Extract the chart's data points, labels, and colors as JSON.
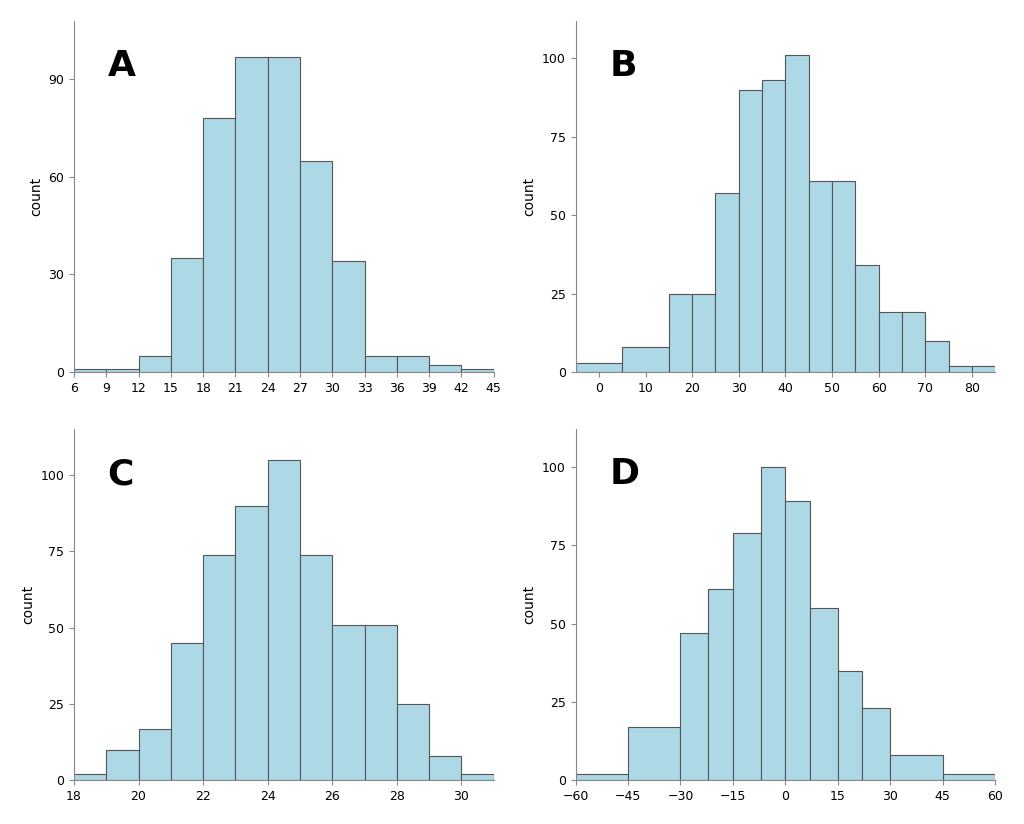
{
  "A": {
    "label": "A",
    "bin_edges": [
      6,
      9,
      12,
      15,
      18,
      21,
      24,
      27,
      30,
      33,
      36,
      39,
      42,
      45
    ],
    "counts": [
      1,
      1,
      5,
      35,
      78,
      97,
      97,
      65,
      34,
      5,
      5,
      2,
      1
    ],
    "xticks": [
      6,
      9,
      12,
      15,
      18,
      21,
      24,
      27,
      30,
      33,
      36,
      39,
      42,
      45
    ],
    "yticks": [
      0,
      30,
      60,
      90
    ],
    "ylim": [
      0,
      108
    ],
    "xlim": [
      6,
      45
    ]
  },
  "B": {
    "label": "B",
    "bin_edges": [
      -5,
      5,
      15,
      20,
      25,
      30,
      35,
      40,
      45,
      50,
      55,
      60,
      65,
      70,
      75,
      80,
      85
    ],
    "counts": [
      3,
      8,
      25,
      25,
      57,
      90,
      93,
      101,
      61,
      61,
      34,
      19,
      19,
      10,
      2,
      2
    ],
    "xticks": [
      0,
      10,
      20,
      30,
      40,
      50,
      60,
      70,
      80
    ],
    "yticks": [
      0,
      25,
      50,
      75,
      100
    ],
    "ylim": [
      0,
      112
    ],
    "xlim": [
      -5,
      85
    ]
  },
  "C": {
    "label": "C",
    "bin_edges": [
      18,
      19,
      20,
      21,
      22,
      23,
      24,
      25,
      26,
      27,
      28,
      29,
      30,
      31
    ],
    "counts": [
      2,
      10,
      17,
      45,
      74,
      90,
      105,
      74,
      51,
      51,
      25,
      8,
      2
    ],
    "xticks": [
      18,
      20,
      22,
      24,
      26,
      28,
      30
    ],
    "yticks": [
      0,
      25,
      50,
      75,
      100
    ],
    "ylim": [
      0,
      115
    ],
    "xlim": [
      18,
      31
    ]
  },
  "D": {
    "label": "D",
    "bin_edges": [
      -60,
      -45,
      -30,
      -22,
      -15,
      -7,
      0,
      7,
      15,
      22,
      30,
      45,
      60
    ],
    "counts": [
      2,
      17,
      47,
      61,
      79,
      100,
      89,
      55,
      35,
      23,
      8,
      2
    ],
    "xticks": [
      -60,
      -45,
      -30,
      -15,
      0,
      15,
      30,
      45,
      60
    ],
    "yticks": [
      0,
      25,
      50,
      75,
      100
    ],
    "ylim": [
      0,
      112
    ],
    "xlim": [
      -60,
      60
    ]
  },
  "bar_color": "#add8e6",
  "bar_edgecolor": "#555555",
  "bar_linewidth": 0.8,
  "ylabel": "count",
  "background_color": "#ffffff",
  "label_fontsize": 26,
  "axis_fontsize": 10,
  "tick_fontsize": 9
}
